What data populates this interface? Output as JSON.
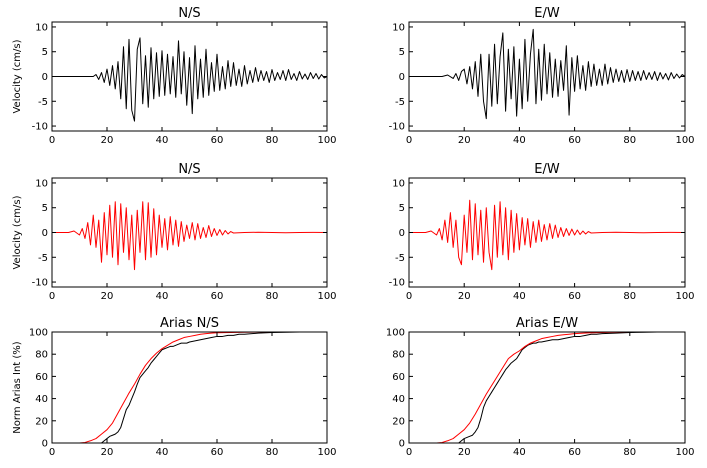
{
  "chart_data": [
    {
      "type": "line",
      "title": "N/S",
      "ylabel": "Velocity (cm/s)",
      "xlim": [
        0,
        100
      ],
      "ylim": [
        -11,
        11
      ],
      "xticks": [
        0,
        20,
        40,
        60,
        80,
        100
      ],
      "yticks": [
        -10,
        -5,
        0,
        5,
        10
      ],
      "series": [
        {
          "color": "#000000",
          "x": [
            0,
            15,
            16,
            17,
            18,
            19,
            20,
            21,
            22,
            23,
            24,
            25,
            26,
            27,
            28,
            29,
            30,
            31,
            32,
            33,
            34,
            35,
            36,
            37,
            38,
            39,
            40,
            41,
            42,
            43,
            44,
            45,
            46,
            47,
            48,
            49,
            50,
            51,
            52,
            53,
            54,
            55,
            56,
            57,
            58,
            59,
            60,
            61,
            62,
            63,
            64,
            65,
            66,
            67,
            68,
            69,
            70,
            71,
            72,
            73,
            74,
            75,
            76,
            77,
            78,
            79,
            80,
            81,
            82,
            83,
            84,
            85,
            86,
            87,
            88,
            89,
            90,
            91,
            92,
            93,
            94,
            95,
            96,
            97,
            98,
            99,
            100
          ],
          "y": [
            0,
            0,
            0.4,
            -0.6,
            0.8,
            -1.2,
            1.5,
            -1.8,
            2.2,
            -2.5,
            3.0,
            -4.5,
            6.0,
            -6.5,
            7.5,
            -6.8,
            -9.0,
            5.5,
            7.8,
            -5.5,
            4.2,
            -6.2,
            5.8,
            -4.5,
            4.8,
            -4.0,
            5.2,
            -3.8,
            4.5,
            -3.5,
            4.0,
            -4.2,
            7.2,
            -3.5,
            5.0,
            -5.8,
            3.8,
            -7.5,
            6.2,
            -4.5,
            3.5,
            -4.2,
            5.5,
            -3.8,
            2.8,
            -3.0,
            4.5,
            -2.8,
            2.0,
            -2.5,
            3.2,
            -2.0,
            2.8,
            -1.8,
            1.5,
            -2.0,
            2.2,
            -1.5,
            1.2,
            -1.2,
            1.8,
            -1.0,
            1.2,
            -0.8,
            1.0,
            -1.2,
            1.4,
            -0.8,
            0.8,
            -0.6,
            1.2,
            -0.8,
            1.4,
            -0.6,
            0.6,
            -0.8,
            1.0,
            -0.5,
            0.5,
            -0.6,
            0.8,
            -0.4,
            0.6,
            -0.5,
            0.4,
            -0.3,
            0
          ]
        }
      ]
    },
    {
      "type": "line",
      "title": "E/W",
      "ylabel": "",
      "xlim": [
        0,
        100
      ],
      "ylim": [
        -11,
        11
      ],
      "xticks": [
        0,
        20,
        40,
        60,
        80,
        100
      ],
      "yticks": [
        -10,
        -5,
        0,
        5,
        10
      ],
      "series": [
        {
          "color": "#000000",
          "x": [
            0,
            12,
            14,
            16,
            17,
            18,
            19,
            20,
            21,
            22,
            23,
            24,
            25,
            26,
            27,
            28,
            29,
            30,
            31,
            32,
            33,
            34,
            35,
            36,
            37,
            38,
            39,
            40,
            41,
            42,
            43,
            44,
            45,
            46,
            47,
            48,
            49,
            50,
            51,
            52,
            53,
            54,
            55,
            56,
            57,
            58,
            59,
            60,
            61,
            62,
            63,
            64,
            65,
            66,
            67,
            68,
            69,
            70,
            71,
            72,
            73,
            74,
            75,
            76,
            77,
            78,
            79,
            80,
            81,
            82,
            83,
            84,
            85,
            86,
            87,
            88,
            89,
            90,
            91,
            92,
            93,
            94,
            95,
            96,
            97,
            98,
            99,
            100
          ],
          "y": [
            0,
            0,
            0.3,
            -0.4,
            0.6,
            -0.8,
            1.0,
            1.5,
            -1.5,
            2.0,
            -2.5,
            3.0,
            -4.0,
            4.5,
            -5.0,
            -8.5,
            4.5,
            -6.0,
            6.5,
            -5.5,
            4.0,
            8.8,
            -7.0,
            5.5,
            -4.5,
            6.0,
            -8.0,
            3.5,
            -6.5,
            7.5,
            -5.0,
            4.5,
            9.5,
            -5.5,
            5.5,
            -4.8,
            6.5,
            -3.5,
            4.8,
            -4.2,
            3.5,
            -4.0,
            3.2,
            -2.8,
            6.2,
            -7.8,
            3.8,
            -3.0,
            4.2,
            -2.5,
            2.2,
            -2.8,
            3.0,
            -2.0,
            2.5,
            -1.8,
            1.5,
            -1.8,
            2.5,
            -1.5,
            1.8,
            -1.2,
            1.5,
            -1.0,
            1.2,
            -1.2,
            1.4,
            -1.0,
            1.2,
            -0.8,
            1.0,
            -0.8,
            1.2,
            -0.6,
            0.8,
            -0.6,
            1.0,
            -0.8,
            0.8,
            -0.5,
            0.6,
            -0.7,
            0.8,
            -0.4,
            0.5,
            -0.3,
            0.4,
            0
          ]
        }
      ]
    },
    {
      "type": "line",
      "title": "N/S",
      "ylabel": "Velocity (cm/s)",
      "xlim": [
        0,
        100
      ],
      "ylim": [
        -11,
        11
      ],
      "xticks": [
        0,
        20,
        40,
        60,
        80,
        100
      ],
      "yticks": [
        -10,
        -5,
        0,
        5,
        10
      ],
      "series": [
        {
          "color": "#ff0000",
          "x": [
            0,
            6,
            8,
            10,
            11,
            12,
            13,
            14,
            15,
            16,
            17,
            18,
            19,
            20,
            21,
            22,
            23,
            24,
            25,
            26,
            27,
            28,
            29,
            30,
            31,
            32,
            33,
            34,
            35,
            36,
            37,
            38,
            39,
            40,
            41,
            42,
            43,
            44,
            45,
            46,
            47,
            48,
            49,
            50,
            51,
            52,
            53,
            54,
            55,
            56,
            57,
            58,
            59,
            60,
            61,
            62,
            63,
            64,
            65,
            66,
            70,
            75,
            80,
            85,
            90,
            95,
            100
          ],
          "y": [
            0,
            0,
            0.3,
            -0.5,
            0.8,
            -1.2,
            2.0,
            -2.5,
            3.5,
            -3.0,
            2.5,
            -6.0,
            4.0,
            -4.5,
            5.5,
            -5.0,
            6.2,
            -6.5,
            5.8,
            -4.0,
            5.0,
            -5.5,
            3.5,
            -7.5,
            4.5,
            -4.0,
            6.2,
            -5.5,
            6.0,
            -5.0,
            4.8,
            -4.5,
            3.5,
            -3.0,
            2.8,
            -3.5,
            3.2,
            -2.5,
            2.5,
            -2.8,
            2.2,
            -1.8,
            1.5,
            -1.2,
            2.0,
            -1.5,
            1.8,
            -1.2,
            1.0,
            -1.0,
            1.4,
            -0.8,
            0.8,
            -0.6,
            0.6,
            -0.5,
            0.4,
            -0.3,
            0.2,
            -0.1,
            0,
            0.05,
            0,
            -0.05,
            0,
            0.03,
            0
          ]
        }
      ]
    },
    {
      "type": "line",
      "title": "E/W",
      "ylabel": "",
      "xlim": [
        0,
        100
      ],
      "ylim": [
        -11,
        11
      ],
      "xticks": [
        0,
        20,
        40,
        60,
        80,
        100
      ],
      "yticks": [
        -10,
        -5,
        0,
        5,
        10
      ],
      "series": [
        {
          "color": "#ff0000",
          "x": [
            0,
            6,
            8,
            10,
            11,
            12,
            13,
            14,
            15,
            16,
            17,
            18,
            19,
            20,
            21,
            22,
            23,
            24,
            25,
            26,
            27,
            28,
            29,
            30,
            31,
            32,
            33,
            34,
            35,
            36,
            37,
            38,
            39,
            40,
            41,
            42,
            43,
            44,
            45,
            46,
            47,
            48,
            49,
            50,
            51,
            52,
            53,
            54,
            55,
            56,
            57,
            58,
            59,
            60,
            61,
            62,
            63,
            64,
            65,
            66,
            70,
            75,
            80,
            85,
            90,
            95,
            100
          ],
          "y": [
            0,
            0,
            0.3,
            -0.5,
            0.8,
            -1.5,
            2.5,
            -2.0,
            4.0,
            -3.0,
            2.5,
            -5.0,
            -6.5,
            3.5,
            -4.0,
            6.5,
            -5.5,
            5.8,
            -4.5,
            4.5,
            -6.0,
            5.0,
            -4.0,
            -7.5,
            5.5,
            -5.0,
            6.2,
            -4.5,
            5.0,
            -5.5,
            4.5,
            -4.0,
            3.8,
            -3.5,
            3.0,
            -2.5,
            2.8,
            -3.0,
            2.2,
            -2.0,
            2.5,
            -1.8,
            1.6,
            -1.5,
            1.8,
            -1.2,
            1.5,
            -1.0,
            1.0,
            -0.8,
            0.8,
            -0.6,
            0.7,
            -0.5,
            0.5,
            -0.4,
            0.3,
            -0.3,
            0.2,
            -0.1,
            0,
            0.05,
            0,
            -0.05,
            0,
            0.03,
            0
          ]
        }
      ]
    },
    {
      "type": "line",
      "title": "Arias N/S",
      "ylabel": "Norm Arias Int (%)",
      "xlim": [
        0,
        100
      ],
      "ylim": [
        0,
        100
      ],
      "xticks": [
        0,
        20,
        40,
        60,
        80,
        100
      ],
      "yticks": [
        0,
        20,
        40,
        60,
        80,
        100
      ],
      "series": [
        {
          "color": "#000000",
          "x": [
            0,
            16,
            18,
            19,
            20,
            21,
            22,
            23,
            24,
            25,
            26,
            27,
            28,
            29,
            30,
            31,
            32,
            33,
            34,
            35,
            36,
            37,
            38,
            39,
            40,
            41,
            42,
            43,
            44,
            45,
            46,
            47,
            48,
            49,
            50,
            52,
            54,
            56,
            58,
            60,
            62,
            64,
            66,
            68,
            70,
            75,
            80,
            85,
            90,
            100
          ],
          "y": [
            0,
            0,
            0,
            2,
            4,
            6,
            7,
            8,
            10,
            14,
            22,
            30,
            34,
            40,
            46,
            53,
            59,
            62,
            65,
            68,
            72,
            75,
            78,
            81,
            84,
            85,
            86,
            87,
            87,
            88,
            89,
            90,
            90,
            90,
            91,
            92,
            93,
            94,
            95,
            96,
            96,
            97,
            97,
            98,
            98,
            99,
            99.5,
            99.8,
            100,
            100
          ]
        },
        {
          "color": "#ff0000",
          "x": [
            0,
            10,
            12,
            14,
            16,
            18,
            20,
            22,
            24,
            26,
            28,
            30,
            32,
            34,
            36,
            38,
            40,
            42,
            44,
            46,
            48,
            50,
            52,
            54,
            56,
            58,
            60,
            65,
            70,
            80,
            90,
            100
          ],
          "y": [
            0,
            0,
            0.5,
            2,
            4,
            8,
            12,
            18,
            27,
            36,
            45,
            53,
            62,
            70,
            76,
            81,
            85,
            88,
            91,
            93,
            95,
            96,
            97,
            98,
            98.5,
            99,
            99.3,
            99.6,
            99.8,
            100,
            100,
            100
          ]
        }
      ]
    },
    {
      "type": "line",
      "title": "Arias E/W",
      "ylabel": "",
      "xlim": [
        0,
        100
      ],
      "ylim": [
        0,
        100
      ],
      "xticks": [
        0,
        20,
        40,
        60,
        80,
        100
      ],
      "yticks": [
        0,
        20,
        40,
        60,
        80,
        100
      ],
      "series": [
        {
          "color": "#000000",
          "x": [
            0,
            16,
            18,
            19,
            20,
            21,
            22,
            23,
            24,
            25,
            26,
            27,
            28,
            29,
            30,
            31,
            32,
            33,
            34,
            35,
            36,
            37,
            38,
            39,
            40,
            41,
            42,
            43,
            44,
            45,
            46,
            47,
            48,
            50,
            52,
            54,
            56,
            58,
            60,
            62,
            64,
            66,
            68,
            70,
            75,
            80,
            85,
            90,
            100
          ],
          "y": [
            0,
            0,
            0,
            2,
            4,
            5,
            6,
            7,
            10,
            14,
            22,
            32,
            38,
            42,
            46,
            50,
            54,
            58,
            62,
            66,
            69,
            72,
            74,
            76,
            80,
            84,
            86,
            88,
            89,
            90,
            90,
            91,
            91,
            92,
            93,
            93,
            94,
            95,
            96,
            96,
            97,
            98,
            98,
            98.5,
            99,
            99.5,
            99.8,
            100,
            100
          ]
        },
        {
          "color": "#ff0000",
          "x": [
            0,
            10,
            12,
            14,
            16,
            18,
            20,
            22,
            24,
            26,
            28,
            30,
            32,
            34,
            36,
            38,
            40,
            42,
            44,
            46,
            48,
            50,
            52,
            54,
            56,
            58,
            60,
            65,
            70,
            80,
            90,
            100
          ],
          "y": [
            0,
            0,
            0.5,
            2,
            4,
            8,
            12,
            18,
            26,
            35,
            44,
            52,
            60,
            68,
            76,
            80,
            83,
            87,
            90,
            92,
            94,
            95,
            96,
            97,
            97.5,
            98,
            98.5,
            99.2,
            99.6,
            100,
            100,
            100
          ]
        }
      ]
    }
  ]
}
